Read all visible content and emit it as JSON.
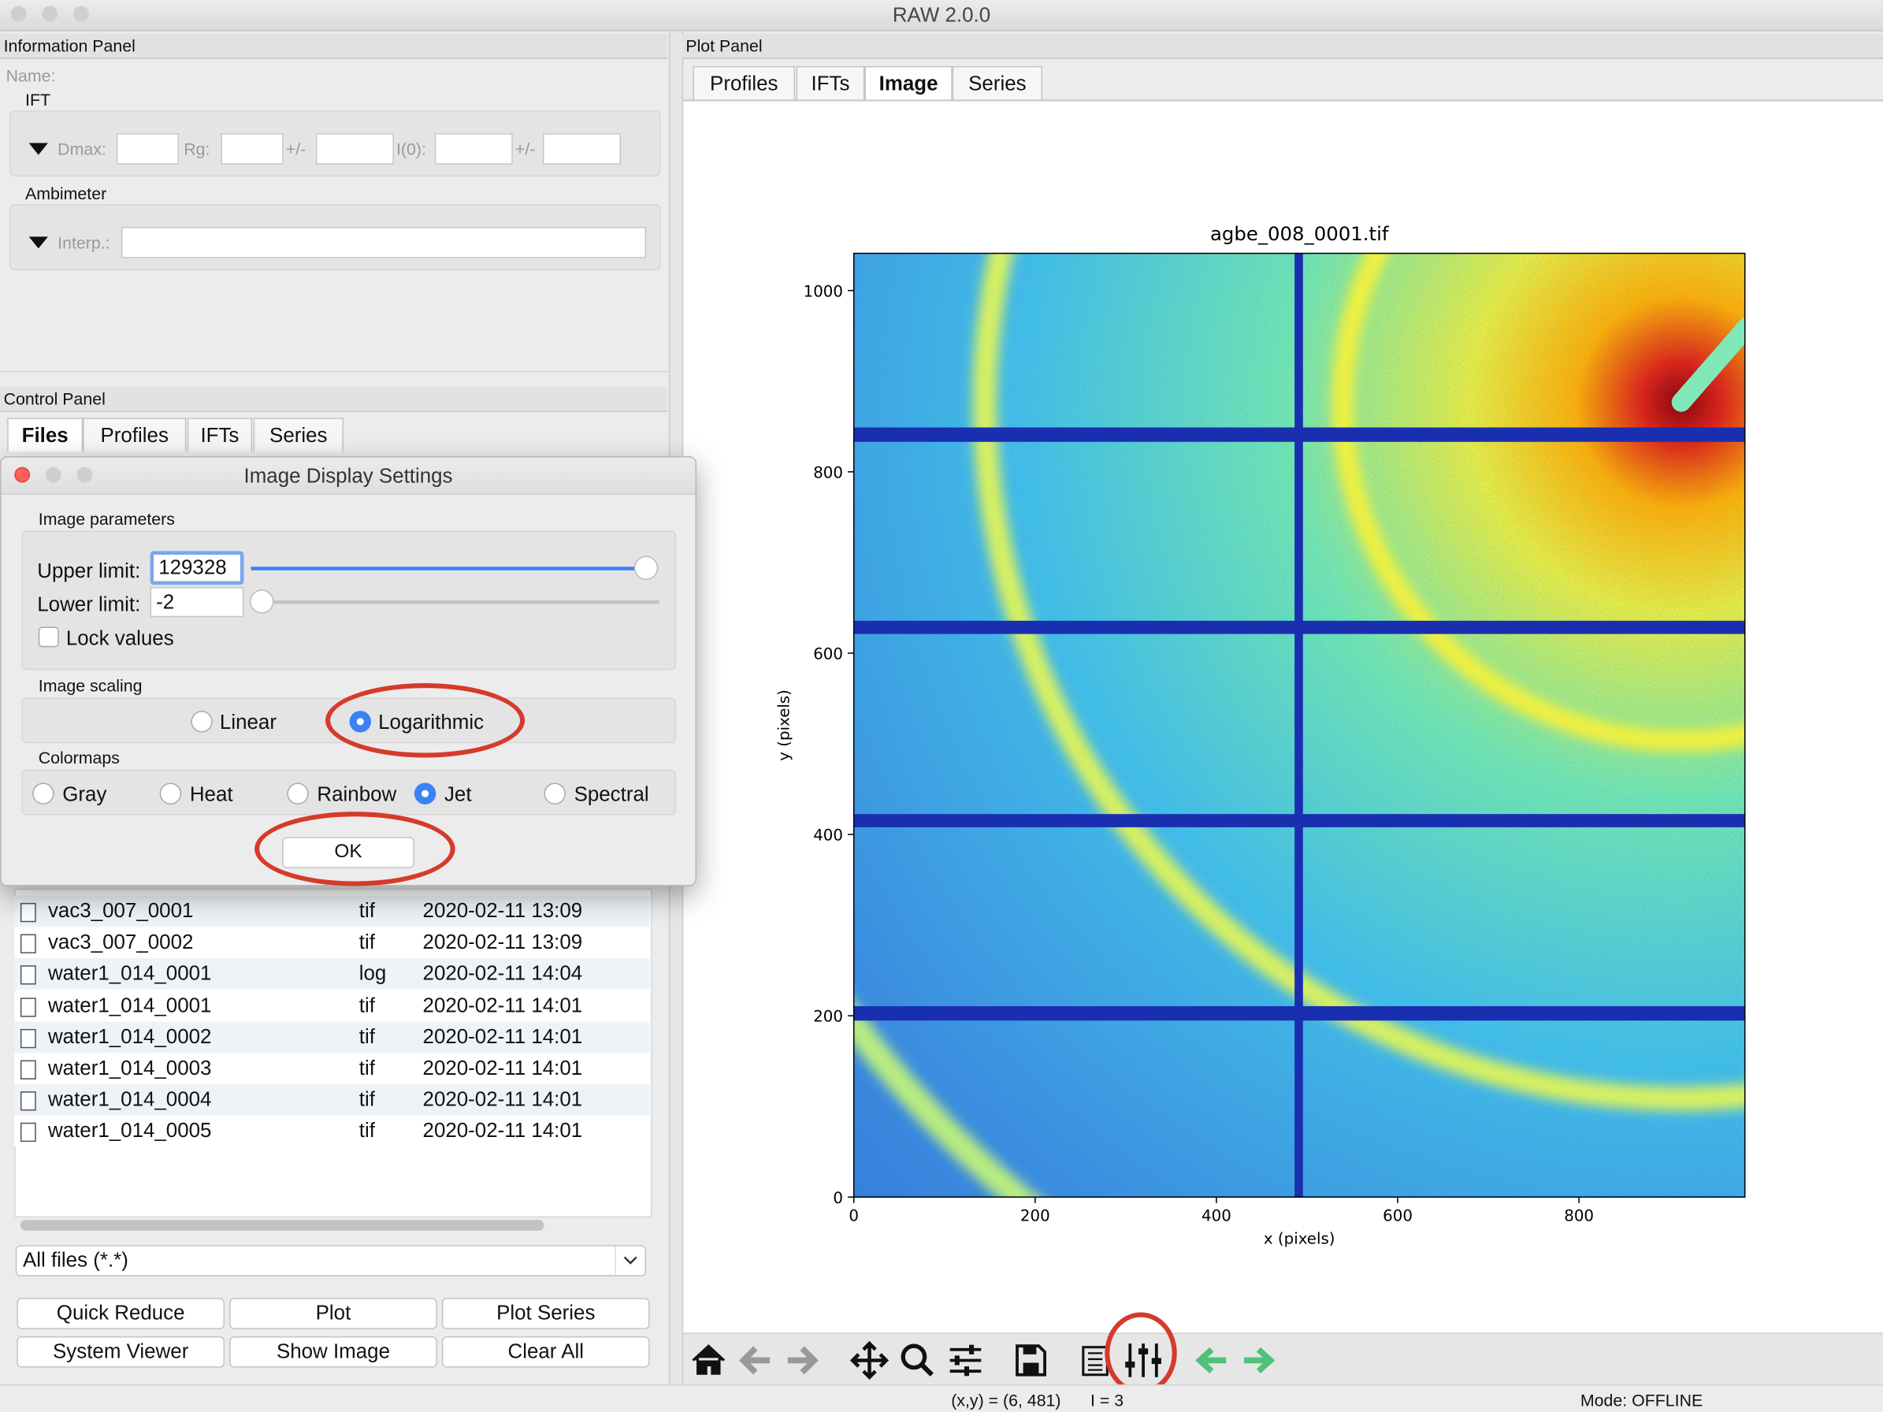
{
  "window": {
    "title": "RAW 2.0.0"
  },
  "info_panel": {
    "title": "Information Panel",
    "name_label": "Name:",
    "ift_label": "IFT",
    "dmax_label": "Dmax:",
    "rg_label": "Rg:",
    "rg_pm": "+/-",
    "i0_label": "I(0):",
    "i0_pm": "+/-",
    "ambimeter_label": "Ambimeter",
    "interp_label": "Interp.:"
  },
  "control_panel": {
    "title": "Control Panel",
    "tabs": [
      "Files",
      "Profiles",
      "IFTs",
      "Series"
    ],
    "files": [
      {
        "name": "vac3_007_0001",
        "type": "tif",
        "date": "2020-02-11 13:09"
      },
      {
        "name": "vac3_007_0002",
        "type": "tif",
        "date": "2020-02-11 13:09"
      },
      {
        "name": "water1_014_0001",
        "type": "log",
        "date": "2020-02-11 14:04"
      },
      {
        "name": "water1_014_0001",
        "type": "tif",
        "date": "2020-02-11 14:01"
      },
      {
        "name": "water1_014_0002",
        "type": "tif",
        "date": "2020-02-11 14:01"
      },
      {
        "name": "water1_014_0003",
        "type": "tif",
        "date": "2020-02-11 14:01"
      },
      {
        "name": "water1_014_0004",
        "type": "tif",
        "date": "2020-02-11 14:01"
      },
      {
        "name": "water1_014_0005",
        "type": "tif",
        "date": "2020-02-11 14:01"
      }
    ],
    "filter": "All files (*.*)",
    "buttons": [
      "Quick Reduce",
      "Plot",
      "Plot Series",
      "System Viewer",
      "Show Image",
      "Clear All"
    ]
  },
  "dialog": {
    "title": "Image Display Settings",
    "parameters_label": "Image parameters",
    "upper_label": "Upper limit:",
    "upper_value": "129328",
    "lower_label": "Lower limit:",
    "lower_value": "-2",
    "lock_label": "Lock values",
    "scaling_label": "Image scaling",
    "linear": "Linear",
    "logarithmic": "Logarithmic",
    "colormaps_label": "Colormaps",
    "colormaps": [
      "Gray",
      "Heat",
      "Rainbow",
      "Jet",
      "Spectral"
    ],
    "ok": "OK"
  },
  "plot_panel": {
    "title": "Plot Panel",
    "tabs": [
      "Profiles",
      "IFTs",
      "Image",
      "Series"
    ]
  },
  "chart_data": {
    "type": "image",
    "title": "agbe_008_0001.tif",
    "xlabel": "x (pixels)",
    "ylabel": "y (pixels)",
    "xlim": [
      0,
      983
    ],
    "ylim": [
      0,
      1041
    ],
    "xticks": [
      0,
      200,
      400,
      600,
      800
    ],
    "yticks": [
      0,
      200,
      400,
      600,
      800,
      1000
    ]
  },
  "status_bar": {
    "coords": "(x,y) = (6, 481)",
    "intensity": "I = 3",
    "mode": "Mode: OFFLINE"
  }
}
